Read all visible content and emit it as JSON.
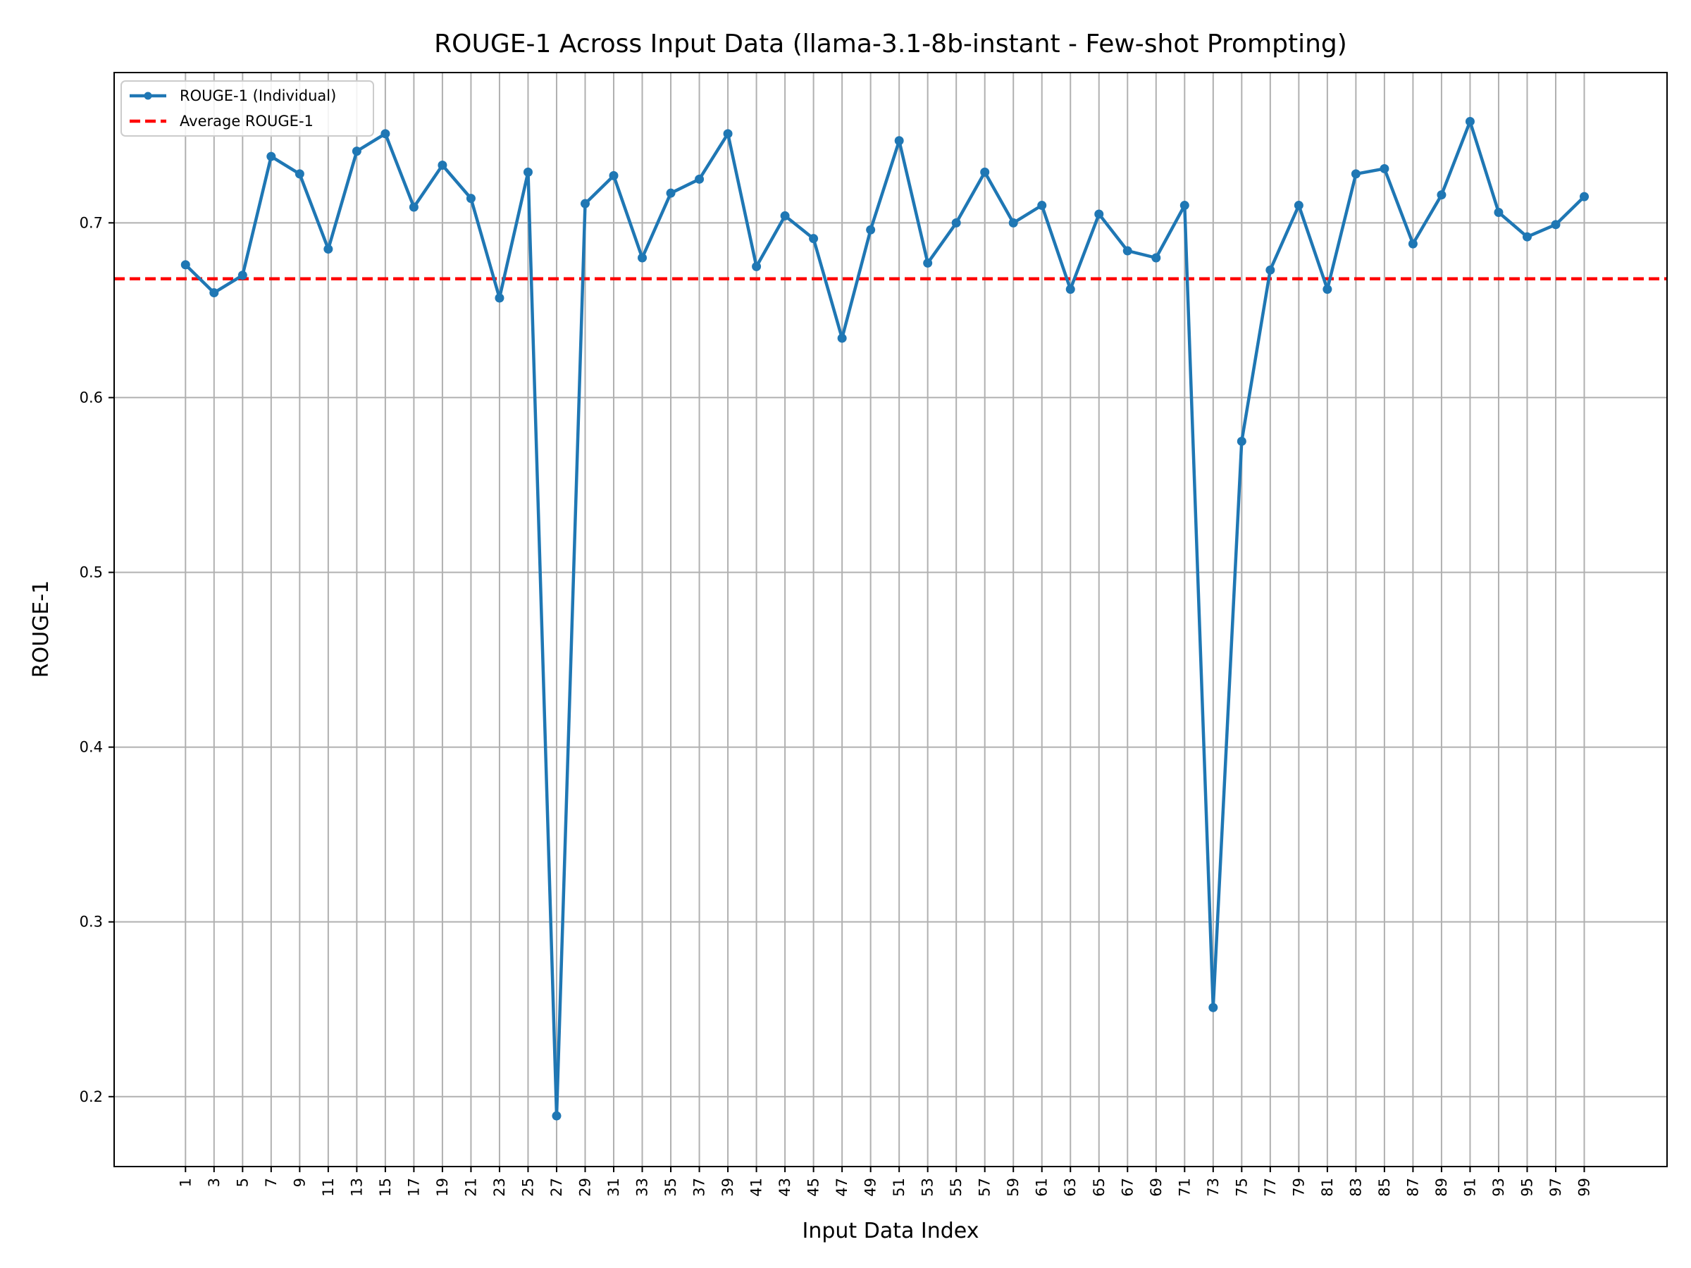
{
  "chart_data": {
    "type": "line",
    "title": "ROUGE-1 Across Input Data (llama-3.1-8b-instant - Few-shot Prompting)",
    "xlabel": "Input Data Index",
    "ylabel": "ROUGE-1",
    "x": [
      1,
      3,
      5,
      7,
      9,
      11,
      13,
      15,
      17,
      19,
      21,
      23,
      25,
      27,
      29,
      31,
      33,
      35,
      37,
      39,
      41,
      43,
      45,
      47,
      49,
      51,
      53,
      55,
      57,
      59,
      61,
      63,
      65,
      67,
      69,
      71,
      73,
      75,
      77,
      79,
      81,
      83,
      85,
      87,
      89,
      91,
      93,
      95,
      97,
      99
    ],
    "x_ticks": [
      1,
      3,
      5,
      7,
      9,
      11,
      13,
      15,
      17,
      19,
      21,
      23,
      25,
      27,
      29,
      31,
      33,
      35,
      37,
      39,
      41,
      43,
      45,
      47,
      49,
      51,
      53,
      55,
      57,
      59,
      61,
      63,
      65,
      67,
      69,
      71,
      73,
      75,
      77,
      79,
      81,
      83,
      85,
      87,
      89,
      91,
      93,
      95,
      97,
      99
    ],
    "xlim": [
      -4,
      104.8
    ],
    "ylim": [
      0.16,
      0.786
    ],
    "y_ticks": [
      0.2,
      0.3,
      0.4,
      0.5,
      0.6,
      0.7
    ],
    "grid": true,
    "legend_position": "top-left",
    "series": [
      {
        "name": "ROUGE-1 (Individual)",
        "color": "#1f77b4",
        "style": "solid-with-markers",
        "values": [
          0.676,
          0.66,
          0.67,
          0.738,
          0.728,
          0.685,
          0.741,
          0.751,
          0.709,
          0.733,
          0.714,
          0.657,
          0.729,
          0.189,
          0.711,
          0.727,
          0.68,
          0.717,
          0.725,
          0.751,
          0.675,
          0.704,
          0.691,
          0.634,
          0.696,
          0.747,
          0.677,
          0.7,
          0.729,
          0.7,
          0.71,
          0.662,
          0.705,
          0.684,
          0.68,
          0.71,
          0.251,
          0.575,
          0.673,
          0.71,
          0.662,
          0.728,
          0.731,
          0.688,
          0.716,
          0.758,
          0.706,
          0.692,
          0.699,
          0.715
        ]
      },
      {
        "name": "Average ROUGE-1",
        "color": "#ff0000",
        "style": "dashed",
        "value": 0.668
      }
    ]
  }
}
